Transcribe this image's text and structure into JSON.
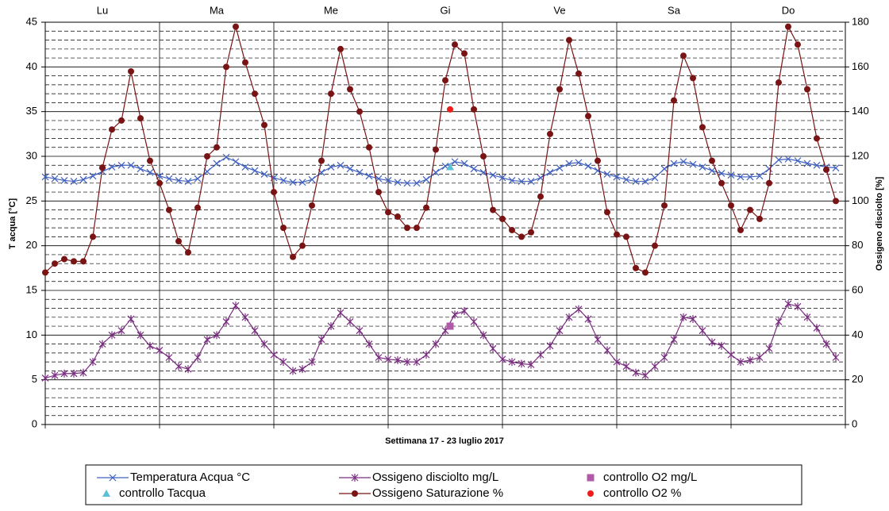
{
  "chart_data": {
    "type": "line",
    "x_label": "Settimana   17 - 23 luglio 2017",
    "y_label": "T acqua [°C]",
    "y2_label": "Ossigeno disciolto [%]",
    "day_labels": [
      "Lu",
      "Ma",
      "Me",
      "Gi",
      "Ve",
      "Sa",
      "Do"
    ],
    "xlim": [
      0,
      168
    ],
    "xticks": [
      0,
      24,
      48,
      72,
      96,
      120,
      144,
      168
    ],
    "ylim": [
      0,
      45
    ],
    "yticks": [
      0,
      5,
      10,
      15,
      20,
      25,
      30,
      35,
      40,
      45
    ],
    "y2lim": [
      0,
      180
    ],
    "y2ticks": [
      0,
      20,
      40,
      60,
      80,
      100,
      120,
      140,
      160,
      180
    ],
    "grid": true,
    "minor_grid_step": 1,
    "x": [
      0,
      2,
      4,
      6,
      8,
      10,
      12,
      14,
      16,
      18,
      20,
      22,
      24,
      26,
      28,
      30,
      32,
      34,
      36,
      38,
      40,
      42,
      44,
      46,
      48,
      50,
      52,
      54,
      56,
      58,
      60,
      62,
      64,
      66,
      68,
      70,
      72,
      74,
      76,
      78,
      80,
      82,
      84,
      86,
      88,
      90,
      92,
      94,
      96,
      98,
      100,
      102,
      104,
      106,
      108,
      110,
      112,
      114,
      116,
      118,
      120,
      122,
      124,
      126,
      128,
      130,
      132,
      134,
      136,
      138,
      140,
      142,
      144,
      146,
      148,
      150,
      152,
      154,
      156,
      158,
      160,
      162,
      164,
      166
    ],
    "series": [
      {
        "name": "Temperatura Acqua °C",
        "color": "#4060c0",
        "marker": "x",
        "axis": "y",
        "values": [
          27.7,
          27.5,
          27.3,
          27.2,
          27.4,
          27.8,
          28.3,
          28.8,
          29.0,
          29.0,
          28.6,
          28.2,
          27.8,
          27.5,
          27.3,
          27.2,
          27.5,
          28.3,
          29.2,
          29.9,
          29.4,
          28.8,
          28.4,
          28.0,
          27.6,
          27.3,
          27.1,
          27.1,
          27.4,
          28.2,
          28.8,
          29.0,
          28.6,
          28.2,
          27.8,
          27.5,
          27.3,
          27.1,
          27.0,
          27.0,
          27.4,
          28.2,
          28.9,
          29.4,
          29.2,
          28.6,
          28.2,
          27.9,
          27.6,
          27.3,
          27.2,
          27.2,
          27.6,
          28.2,
          28.7,
          29.2,
          29.3,
          28.9,
          28.4,
          28.0,
          27.7,
          27.4,
          27.2,
          27.2,
          27.6,
          28.6,
          29.2,
          29.4,
          29.1,
          28.8,
          28.4,
          28.1,
          27.9,
          27.7,
          27.7,
          27.8,
          28.6,
          29.6,
          29.7,
          29.5,
          29.2,
          29.0,
          28.8,
          28.7
        ]
      },
      {
        "name": "Ossigeno disciolto mg/L",
        "color": "#7a2e80",
        "marker": "star",
        "axis": "y",
        "values": [
          5.2,
          5.5,
          5.7,
          5.7,
          5.8,
          7.0,
          9.0,
          10.0,
          10.5,
          11.8,
          10.0,
          8.8,
          8.3,
          7.5,
          6.5,
          6.2,
          7.5,
          9.5,
          10.0,
          11.5,
          13.3,
          12.0,
          10.5,
          9.0,
          7.8,
          7.0,
          6.0,
          6.2,
          7.0,
          9.5,
          11.0,
          12.5,
          11.5,
          10.5,
          9.0,
          7.5,
          7.3,
          7.2,
          7.0,
          7.0,
          7.8,
          9.0,
          10.5,
          12.3,
          12.7,
          11.5,
          10.0,
          8.5,
          7.3,
          7.0,
          6.8,
          6.7,
          7.8,
          8.8,
          10.5,
          12.0,
          12.9,
          11.8,
          9.5,
          8.3,
          7.0,
          6.5,
          5.8,
          5.5,
          6.5,
          7.5,
          9.5,
          12.0,
          11.8,
          10.5,
          9.2,
          8.8,
          7.8,
          7.0,
          7.2,
          7.5,
          8.5,
          11.5,
          13.5,
          13.2,
          12.0,
          10.8,
          9.0,
          7.5
        ]
      },
      {
        "name": "controllo O2 mg/L",
        "color": "#b05aa8",
        "marker": "square",
        "axis": "y",
        "x": [
          85
        ],
        "values": [
          11.0
        ]
      },
      {
        "name": "controllo Tacqua",
        "color": "#5cc0d6",
        "marker": "triangle",
        "axis": "y",
        "x": [
          85
        ],
        "values": [
          28.8
        ]
      },
      {
        "name": "Ossigeno Saturazione %",
        "color": "#7a1414",
        "marker": "circle",
        "axis": "y2",
        "values": [
          68,
          72,
          74,
          73,
          73,
          84,
          115,
          132,
          136,
          158,
          137,
          118,
          108,
          96,
          82,
          77,
          97,
          120,
          124,
          160,
          178,
          162,
          148,
          134,
          104,
          88,
          75,
          80,
          98,
          118,
          148,
          168,
          150,
          140,
          124,
          104,
          95,
          93,
          88,
          88,
          97,
          123,
          154,
          170,
          166,
          141,
          120,
          96,
          92,
          87,
          84,
          86,
          102,
          130,
          150,
          172,
          157,
          138,
          118,
          95,
          85,
          84,
          70,
          68,
          80,
          98,
          145,
          165,
          155,
          133,
          118,
          108,
          98,
          87,
          96,
          92,
          108,
          153,
          178,
          170,
          150,
          128,
          114,
          100
        ]
      },
      {
        "name": "controllo O2 %",
        "color": "#ee1c1c",
        "marker": "circle",
        "axis": "y2",
        "x": [
          85
        ],
        "values": [
          141
        ]
      }
    ]
  }
}
